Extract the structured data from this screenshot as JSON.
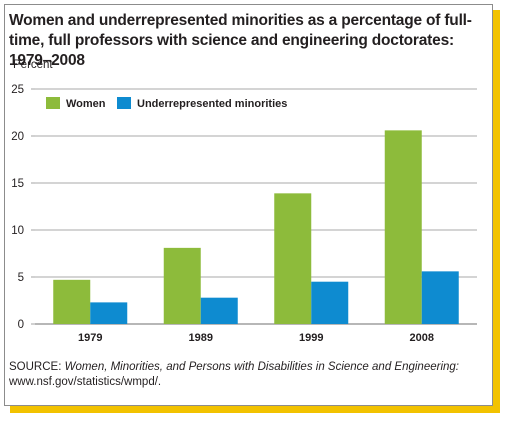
{
  "chart_data": {
    "type": "bar",
    "title": "Women and underrepresented minorities as a percentage of full-time, full professors with science and engineering doctorates: 1979–2008",
    "ylabel": "Percent",
    "xlabel": "",
    "categories": [
      "1979",
      "1989",
      "1999",
      "2008"
    ],
    "series": [
      {
        "name": "Women",
        "values": [
          4.7,
          8.1,
          13.9,
          20.6
        ],
        "color": "#8dbb3b"
      },
      {
        "name": "Underrepresented minorities",
        "values": [
          2.3,
          2.8,
          4.5,
          5.6
        ],
        "color": "#0e8bd0"
      }
    ],
    "ylim": [
      0,
      25
    ],
    "yticks": [
      0,
      5,
      10,
      15,
      20,
      25
    ],
    "grid": true,
    "legend_position": "top-left"
  },
  "source": {
    "prefix": "SOURCE: ",
    "title": "Women, Minorities, and Persons with Disabilities in Science and Engineering:",
    "url": "www.nsf.gov/statistics/wmpd/."
  },
  "colors": {
    "frame_shadow": "#f2c200",
    "border": "#8c8c8c",
    "grid": "#8c8c8c"
  }
}
